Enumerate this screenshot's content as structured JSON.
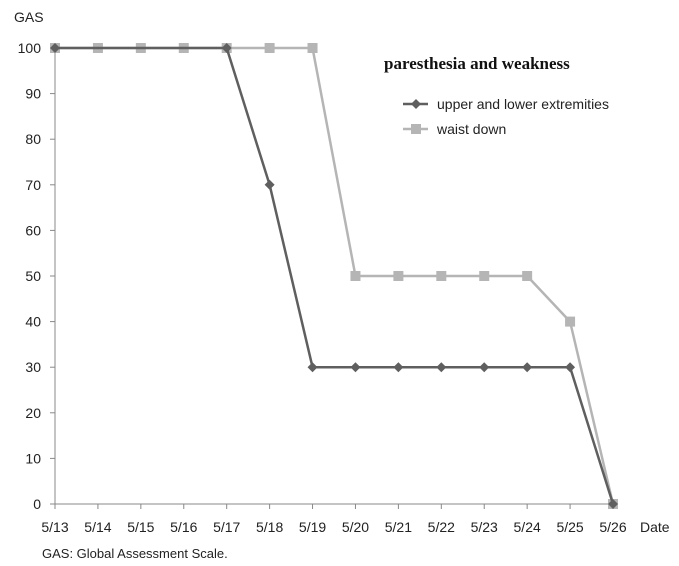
{
  "chart_data": {
    "type": "line",
    "title": "paresthesia and weakness",
    "ylabel": "GAS",
    "xlabel": "Date",
    "ylim": [
      0,
      100
    ],
    "yticks": [
      0,
      10,
      20,
      30,
      40,
      50,
      60,
      70,
      80,
      90,
      100
    ],
    "categories": [
      "5/13",
      "5/14",
      "5/15",
      "5/16",
      "5/17",
      "5/18",
      "5/19",
      "5/20",
      "5/21",
      "5/22",
      "5/23",
      "5/24",
      "5/25",
      "5/26"
    ],
    "series": [
      {
        "name": "upper and lower extremities",
        "marker": "diamond",
        "color": "#5f5f5f",
        "values": [
          100,
          null,
          null,
          null,
          100,
          70,
          30,
          30,
          30,
          30,
          30,
          30,
          30,
          0
        ]
      },
      {
        "name": "waist down",
        "marker": "square",
        "color": "#b5b5b5",
        "values": [
          100,
          100,
          100,
          100,
          100,
          100,
          100,
          50,
          50,
          50,
          50,
          50,
          40,
          0
        ]
      }
    ],
    "legend_position": "top-right",
    "grid": false
  },
  "footnote": "GAS: Global Assessment Scale."
}
